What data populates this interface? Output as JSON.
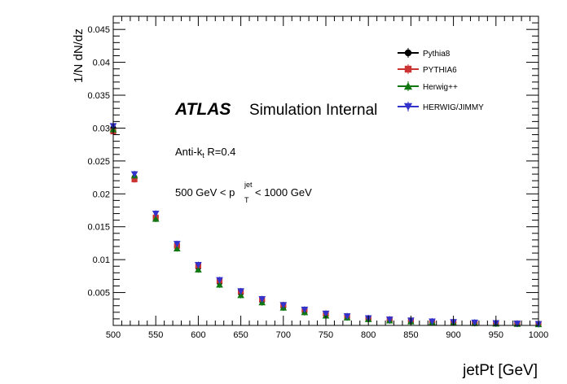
{
  "chart_data": {
    "type": "scatter",
    "xlabel": "jetPt [GeV]",
    "ylabel": "1/N dN/dz",
    "xlim": [
      500,
      1000
    ],
    "ylim": [
      0,
      0.047
    ],
    "x_ticks": [
      500,
      550,
      600,
      650,
      700,
      750,
      800,
      850,
      900,
      950,
      1000
    ],
    "y_ticks": [
      0.005,
      0.01,
      0.015,
      0.02,
      0.025,
      0.03,
      0.035,
      0.04,
      0.045
    ],
    "x_tick_labels": [
      "500",
      "550",
      "600",
      "650",
      "700",
      "750",
      "800",
      "850",
      "900",
      "950",
      "1000"
    ],
    "y_tick_labels": [
      "0.005",
      "0.01",
      "0.015",
      "0.02",
      "0.025",
      "0.03",
      "0.035",
      "0.04",
      "0.045"
    ],
    "legend_position": "top-right",
    "grid": false,
    "series": [
      {
        "name": "Pythia8",
        "color": "#000000",
        "marker": "circle",
        "x": [
          500,
          525,
          550,
          575,
          600,
          625,
          650,
          675,
          700,
          725,
          750,
          775,
          800,
          825,
          850,
          875,
          900,
          925,
          950,
          975,
          1000
        ],
        "y": [
          0.03,
          0.0225,
          0.0165,
          0.012,
          0.0088,
          0.0065,
          0.0049,
          0.0037,
          0.0028,
          0.0021,
          0.0016,
          0.00125,
          0.001,
          0.0008,
          0.00065,
          0.00055,
          0.00045,
          0.00038,
          0.0003,
          0.00025,
          0.0002
        ]
      },
      {
        "name": "PYTHIA6",
        "color": "#cc3333",
        "marker": "square",
        "x": [
          500,
          525,
          550,
          575,
          600,
          625,
          650,
          675,
          700,
          725,
          750,
          775,
          800,
          825,
          850,
          875,
          900,
          925,
          950,
          975,
          1000
        ],
        "y": [
          0.0295,
          0.0222,
          0.0164,
          0.0121,
          0.0091,
          0.0068,
          0.0052,
          0.004,
          0.0031,
          0.0024,
          0.0018,
          0.0014,
          0.0011,
          0.0009,
          0.00075,
          0.0006,
          0.0005,
          0.00042,
          0.00035,
          0.00028,
          0.00022
        ]
      },
      {
        "name": "Herwig++",
        "color": "#117711",
        "marker": "triangle-up",
        "x": [
          500,
          525,
          550,
          575,
          600,
          625,
          650,
          675,
          700,
          725,
          750,
          775,
          800,
          825,
          850,
          875,
          900,
          925,
          950,
          975,
          1000
        ],
        "y": [
          0.0298,
          0.0228,
          0.0162,
          0.0117,
          0.0085,
          0.0062,
          0.0046,
          0.0035,
          0.0027,
          0.002,
          0.0015,
          0.0012,
          0.00095,
          0.00075,
          0.0006,
          0.0005,
          0.00042,
          0.00035,
          0.00028,
          0.00023,
          0.00018
        ]
      },
      {
        "name": "HERWIG/JIMMY",
        "color": "#3333cc",
        "marker": "triangle-down",
        "x": [
          500,
          525,
          550,
          575,
          600,
          625,
          650,
          675,
          700,
          725,
          750,
          775,
          800,
          825,
          850,
          875,
          900,
          925,
          950,
          975,
          1000
        ],
        "y": [
          0.0303,
          0.023,
          0.017,
          0.0124,
          0.0092,
          0.0069,
          0.0052,
          0.004,
          0.0031,
          0.0024,
          0.0018,
          0.0014,
          0.0011,
          0.0009,
          0.00075,
          0.0006,
          0.00052,
          0.00043,
          0.00035,
          0.00028,
          0.00022
        ]
      }
    ],
    "annotations": {
      "atlas_label": "ATLAS",
      "atlas_sublabel": "Simulation Internal",
      "algo_prefix": "Anti-k",
      "algo_sub": "t",
      "algo_suffix": " R=0.4",
      "range_prefix": "500 GeV < p",
      "range_sub": "T",
      "range_sup": "jet",
      "range_suffix": "< 1000 GeV"
    }
  }
}
